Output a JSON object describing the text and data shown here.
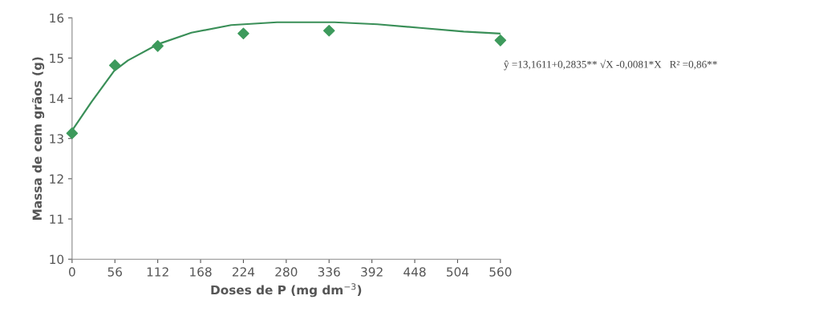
{
  "chart_data": {
    "type": "scatter",
    "xlabel": "Doses de P (mg dm$^{−3}$)",
    "ylabel": "Massa de cem grãos (g)",
    "xlim": [
      0,
      560
    ],
    "xticks": [
      0,
      56,
      112,
      168,
      224,
      280,
      336,
      392,
      448,
      504,
      560
    ],
    "ylim": [
      10,
      16
    ],
    "yticks": [
      10,
      11,
      12,
      13,
      14,
      15,
      16
    ],
    "grid": false,
    "legend": false,
    "series": [
      {
        "marker": "diamond",
        "color": "#3d9a5c",
        "x": [
          0,
          56,
          112,
          224,
          336,
          560
        ],
        "values": [
          13.13,
          14.82,
          15.3,
          15.61,
          15.68,
          15.44
        ]
      },
      {
        "type": "line",
        "marker": "none",
        "line_style": "solid",
        "color": "#3a8f58",
        "x": [
          0,
          25,
          55,
          73,
          113,
          156,
          208,
          268,
          343,
          399,
          455,
          512,
          560
        ],
        "values": [
          13.2,
          13.9,
          14.68,
          14.94,
          15.35,
          15.63,
          15.82,
          15.89,
          15.89,
          15.84,
          15.75,
          15.66,
          15.61
        ]
      }
    ],
    "annotations": [
      "ŷ =13,1611+0,2835** √X -0,0081*X   R² =0,86**"
    ]
  }
}
